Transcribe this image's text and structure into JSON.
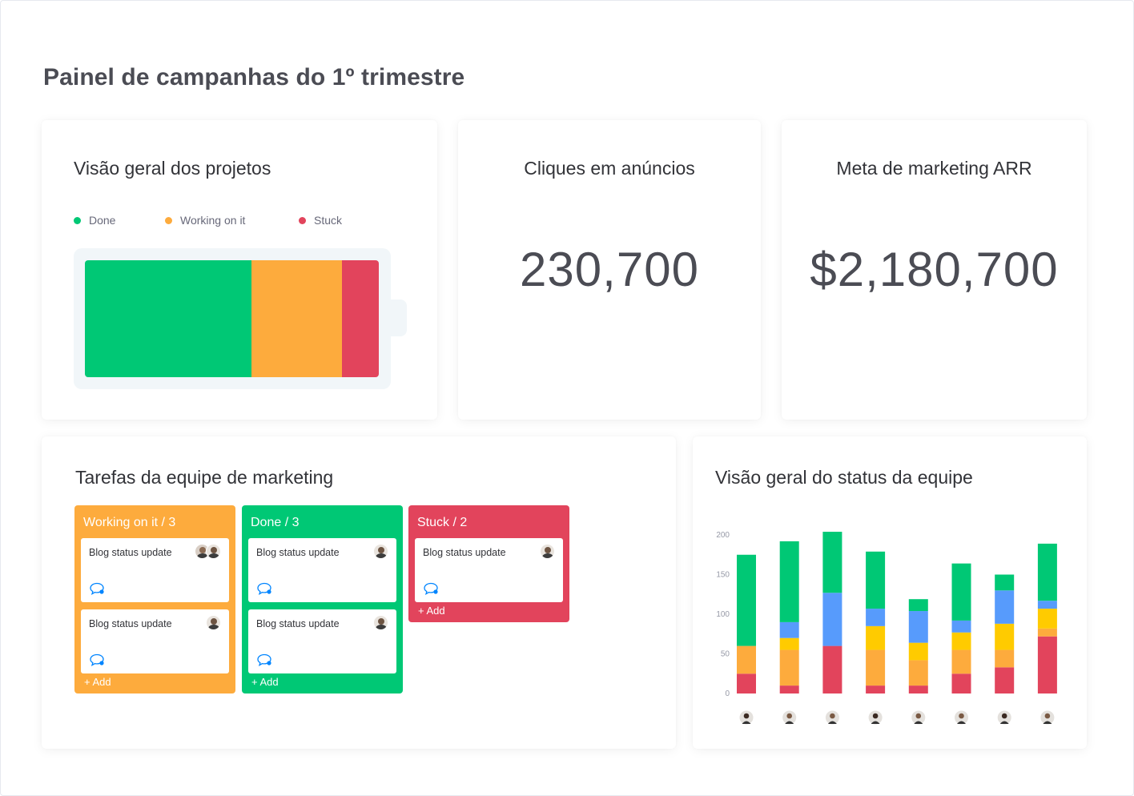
{
  "page": {
    "title": "Painel de campanhas do 1º trimestre"
  },
  "colors": {
    "done": "#00c875",
    "working": "#fdab3d",
    "stuck": "#e2445c",
    "blue": "#579bfc",
    "yellow": "#ffcb00",
    "chat": "#0085ff"
  },
  "projects": {
    "title": "Visão geral dos projetos",
    "legend": [
      {
        "label": "Done",
        "color": "#00c875"
      },
      {
        "label": "Working on it",
        "color": "#fdab3d"
      },
      {
        "label": "Stuck",
        "color": "#e2445c"
      }
    ],
    "shares": [
      {
        "status": "Done",
        "fraction": 0.567,
        "color": "#00c875"
      },
      {
        "status": "Working on it",
        "fraction": 0.307,
        "color": "#fdab3d"
      },
      {
        "status": "Stuck",
        "fraction": 0.126,
        "color": "#e2445c"
      }
    ]
  },
  "clicks": {
    "title": "Cliques em anúncios",
    "value": "230,700"
  },
  "arr": {
    "title": "Meta de marketing ARR",
    "value": "$2,180,700"
  },
  "tasks": {
    "title": "Tarefas da equipe de marketing",
    "add_label": "+ Add",
    "columns": [
      {
        "header": "Working on it / 3",
        "color": "#fdab3d",
        "items": [
          {
            "title": "Blog status update",
            "avatars": [
              "fem",
              "male"
            ]
          },
          {
            "title": "Blog status update",
            "avatars": [
              "male"
            ]
          }
        ]
      },
      {
        "header": "Done / 3",
        "color": "#00c875",
        "items": [
          {
            "title": "Blog status update",
            "avatars": [
              "male"
            ]
          },
          {
            "title": "Blog status update",
            "avatars": [
              "male"
            ]
          }
        ]
      },
      {
        "header": "Stuck / 2",
        "color": "#e2445c",
        "items": [
          {
            "title": "Blog status update",
            "avatars": [
              "male"
            ]
          }
        ]
      }
    ]
  },
  "team": {
    "title": "Visão geral do status da equipe",
    "chart_data": {
      "type": "bar",
      "stacked": true,
      "ylim": [
        0,
        200
      ],
      "yticks": [
        "0",
        "50",
        "100",
        "150",
        "200"
      ],
      "categories": [
        "member-1",
        "member-2",
        "member-3",
        "member-4",
        "member-5",
        "member-6",
        "member-7",
        "member-8"
      ],
      "series": [
        {
          "color": "#e2445c",
          "values": [
            25,
            10,
            60,
            10,
            10,
            25,
            33,
            72
          ]
        },
        {
          "color": "#fdab3d",
          "values": [
            35,
            45,
            0,
            45,
            32,
            30,
            22,
            10
          ]
        },
        {
          "color": "#ffcb00",
          "values": [
            0,
            15,
            0,
            30,
            22,
            22,
            33,
            25
          ]
        },
        {
          "color": "#579bfc",
          "values": [
            0,
            20,
            67,
            22,
            40,
            15,
            42,
            10
          ]
        },
        {
          "color": "#00c875",
          "values": [
            115,
            102,
            77,
            72,
            15,
            72,
            20,
            72
          ]
        }
      ],
      "grid": false,
      "legend": "none"
    }
  }
}
